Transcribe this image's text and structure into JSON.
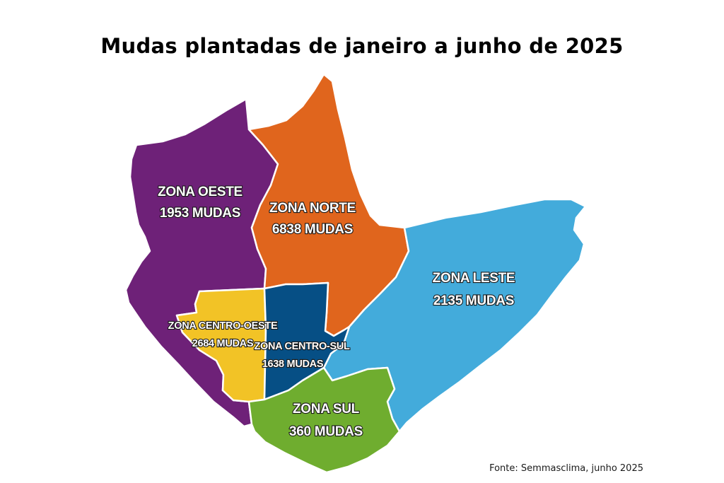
{
  "title": "Mudas plantadas de janeiro a junho de 2025",
  "source": "Fonte: Semmasclima, junho 2025",
  "colors": {
    "zona_oeste": "#6E2178",
    "zona_norte": "#E0651D",
    "zona_leste": "#43ABDB",
    "zona_centro_oeste": "#F2C326",
    "zona_centro_sul": "#064F85",
    "zona_sul": "#6FAD2F"
  },
  "zones": {
    "oeste": {
      "name": "ZONA OESTE",
      "count": "1953 MUDAS"
    },
    "norte": {
      "name": "ZONA NORTE",
      "count": "6838 MUDAS"
    },
    "leste": {
      "name": "ZONA LESTE",
      "count": "2135 MUDAS"
    },
    "centro_oeste": {
      "name": "ZONA CENTRO-OESTE",
      "count": "2684 MUDAS"
    },
    "centro_sul": {
      "name": "ZONA CENTRO-SUL",
      "count": "1638 MUDAS"
    },
    "sul": {
      "name": "ZONA SUL",
      "count": "360 MUDAS"
    }
  }
}
